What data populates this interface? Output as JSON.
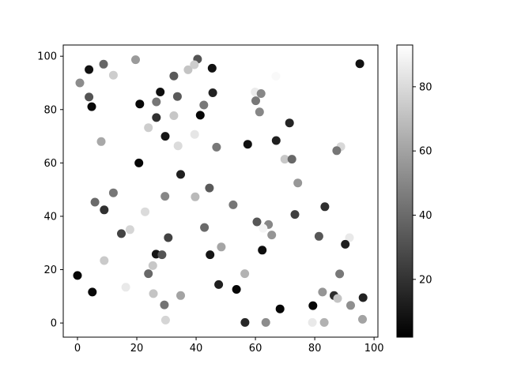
{
  "figure": {
    "background": "#ffffff",
    "text_color": "#000000",
    "spine_color": "#000000"
  },
  "chart_data": {
    "type": "scatter",
    "title": "",
    "xlabel": "",
    "ylabel": "",
    "grid": false,
    "colormap": "gray",
    "marker": "circle",
    "xlim": [
      -4.8,
      101.3
    ],
    "ylim": [
      -5.3,
      104.2
    ],
    "x_tick_values": [
      0,
      20,
      40,
      60,
      80,
      100
    ],
    "x_tick_labels": [
      "0",
      "20",
      "40",
      "60",
      "80",
      "100"
    ],
    "y_tick_values": [
      0,
      20,
      40,
      60,
      80,
      100
    ],
    "y_tick_labels": [
      "0",
      "20",
      "40",
      "60",
      "80",
      "100"
    ],
    "colorbar": {
      "position": "right",
      "vmin": 2,
      "vmax": 93,
      "tick_values": [
        20,
        40,
        60,
        80
      ],
      "tick_labels": [
        "20",
        "40",
        "60",
        "80"
      ],
      "top_color": "#ffffff",
      "bottom_color": "#000000"
    },
    "points_format": [
      "x",
      "y",
      "value"
    ],
    "points": [
      [
        3.9,
        95.0,
        8
      ],
      [
        8.8,
        97.0,
        38
      ],
      [
        12.1,
        92.9,
        75
      ],
      [
        19.6,
        98.7,
        57
      ],
      [
        0.8,
        90.0,
        52
      ],
      [
        3.9,
        84.7,
        32
      ],
      [
        4.8,
        81.1,
        5
      ],
      [
        27.9,
        86.6,
        7
      ],
      [
        21.0,
        82.1,
        5
      ],
      [
        26.6,
        82.9,
        44
      ],
      [
        26.6,
        77.0,
        19
      ],
      [
        23.9,
        73.2,
        75
      ],
      [
        29.6,
        70.0,
        10
      ],
      [
        8.0,
        68.0,
        62
      ],
      [
        40.5,
        98.9,
        32
      ],
      [
        37.3,
        94.9,
        72
      ],
      [
        39.4,
        96.8,
        75
      ],
      [
        32.5,
        92.6,
        34
      ],
      [
        45.4,
        95.5,
        8
      ],
      [
        45.6,
        86.3,
        14
      ],
      [
        33.7,
        84.9,
        34
      ],
      [
        42.6,
        81.7,
        45
      ],
      [
        41.4,
        77.9,
        4
      ],
      [
        32.5,
        77.7,
        73
      ],
      [
        39.5,
        70.7,
        84
      ],
      [
        59.9,
        86.6,
        86
      ],
      [
        61.9,
        86.0,
        50
      ],
      [
        60.1,
        83.3,
        45
      ],
      [
        61.4,
        79.1,
        50
      ],
      [
        95.2,
        97.2,
        8
      ],
      [
        66.9,
        92.5,
        91
      ],
      [
        71.5,
        75.0,
        15
      ],
      [
        67.0,
        68.4,
        13
      ],
      [
        20.7,
        60.0,
        4
      ],
      [
        12.1,
        48.8,
        44
      ],
      [
        5.9,
        45.3,
        40
      ],
      [
        9.0,
        42.4,
        19
      ],
      [
        22.8,
        41.7,
        80
      ],
      [
        29.5,
        47.5,
        50
      ],
      [
        14.8,
        33.5,
        26
      ],
      [
        17.7,
        35.0,
        78
      ],
      [
        33.9,
        66.4,
        80
      ],
      [
        46.9,
        65.9,
        45
      ],
      [
        57.4,
        67.0,
        8
      ],
      [
        34.8,
        55.7,
        13
      ],
      [
        44.5,
        50.6,
        34
      ],
      [
        39.7,
        47.3,
        68
      ],
      [
        52.5,
        44.3,
        44
      ],
      [
        42.8,
        35.8,
        40
      ],
      [
        60.5,
        37.9,
        33
      ],
      [
        64.4,
        36.9,
        50
      ],
      [
        62.6,
        35.5,
        89
      ],
      [
        65.5,
        33.0,
        55
      ],
      [
        30.6,
        32.0,
        26
      ],
      [
        69.9,
        61.4,
        73
      ],
      [
        72.3,
        61.4,
        39
      ],
      [
        88.8,
        66.1,
        79
      ],
      [
        87.4,
        64.6,
        44
      ],
      [
        74.3,
        52.5,
        56
      ],
      [
        83.4,
        43.6,
        19
      ],
      [
        73.3,
        40.7,
        25
      ],
      [
        81.4,
        32.5,
        33
      ],
      [
        91.7,
        32.0,
        85
      ],
      [
        9.0,
        23.4,
        74
      ],
      [
        0.0,
        17.8,
        4
      ],
      [
        5.0,
        11.6,
        5
      ],
      [
        16.3,
        13.4,
        85
      ],
      [
        26.5,
        25.8,
        10
      ],
      [
        28.5,
        25.6,
        32
      ],
      [
        25.4,
        21.5,
        73
      ],
      [
        23.9,
        18.5,
        39
      ],
      [
        25.6,
        11.0,
        72
      ],
      [
        29.3,
        6.8,
        43
      ],
      [
        29.7,
        1.1,
        78
      ],
      [
        48.5,
        28.5,
        61
      ],
      [
        44.7,
        25.6,
        10
      ],
      [
        62.3,
        27.3,
        7
      ],
      [
        56.4,
        18.5,
        66
      ],
      [
        47.6,
        14.4,
        13
      ],
      [
        53.6,
        12.6,
        4
      ],
      [
        34.8,
        10.3,
        60
      ],
      [
        56.5,
        0.2,
        16
      ],
      [
        63.5,
        0.2,
        52
      ],
      [
        90.3,
        29.5,
        13
      ],
      [
        88.4,
        18.4,
        45
      ],
      [
        82.6,
        11.6,
        55
      ],
      [
        86.5,
        10.3,
        18
      ],
      [
        87.7,
        9.2,
        72
      ],
      [
        96.3,
        9.5,
        14
      ],
      [
        92.1,
        6.6,
        53
      ],
      [
        79.4,
        6.5,
        4
      ],
      [
        68.3,
        5.3,
        4
      ],
      [
        96.1,
        1.4,
        60
      ],
      [
        79.2,
        0.2,
        85
      ],
      [
        83.2,
        0.2,
        65
      ]
    ]
  }
}
